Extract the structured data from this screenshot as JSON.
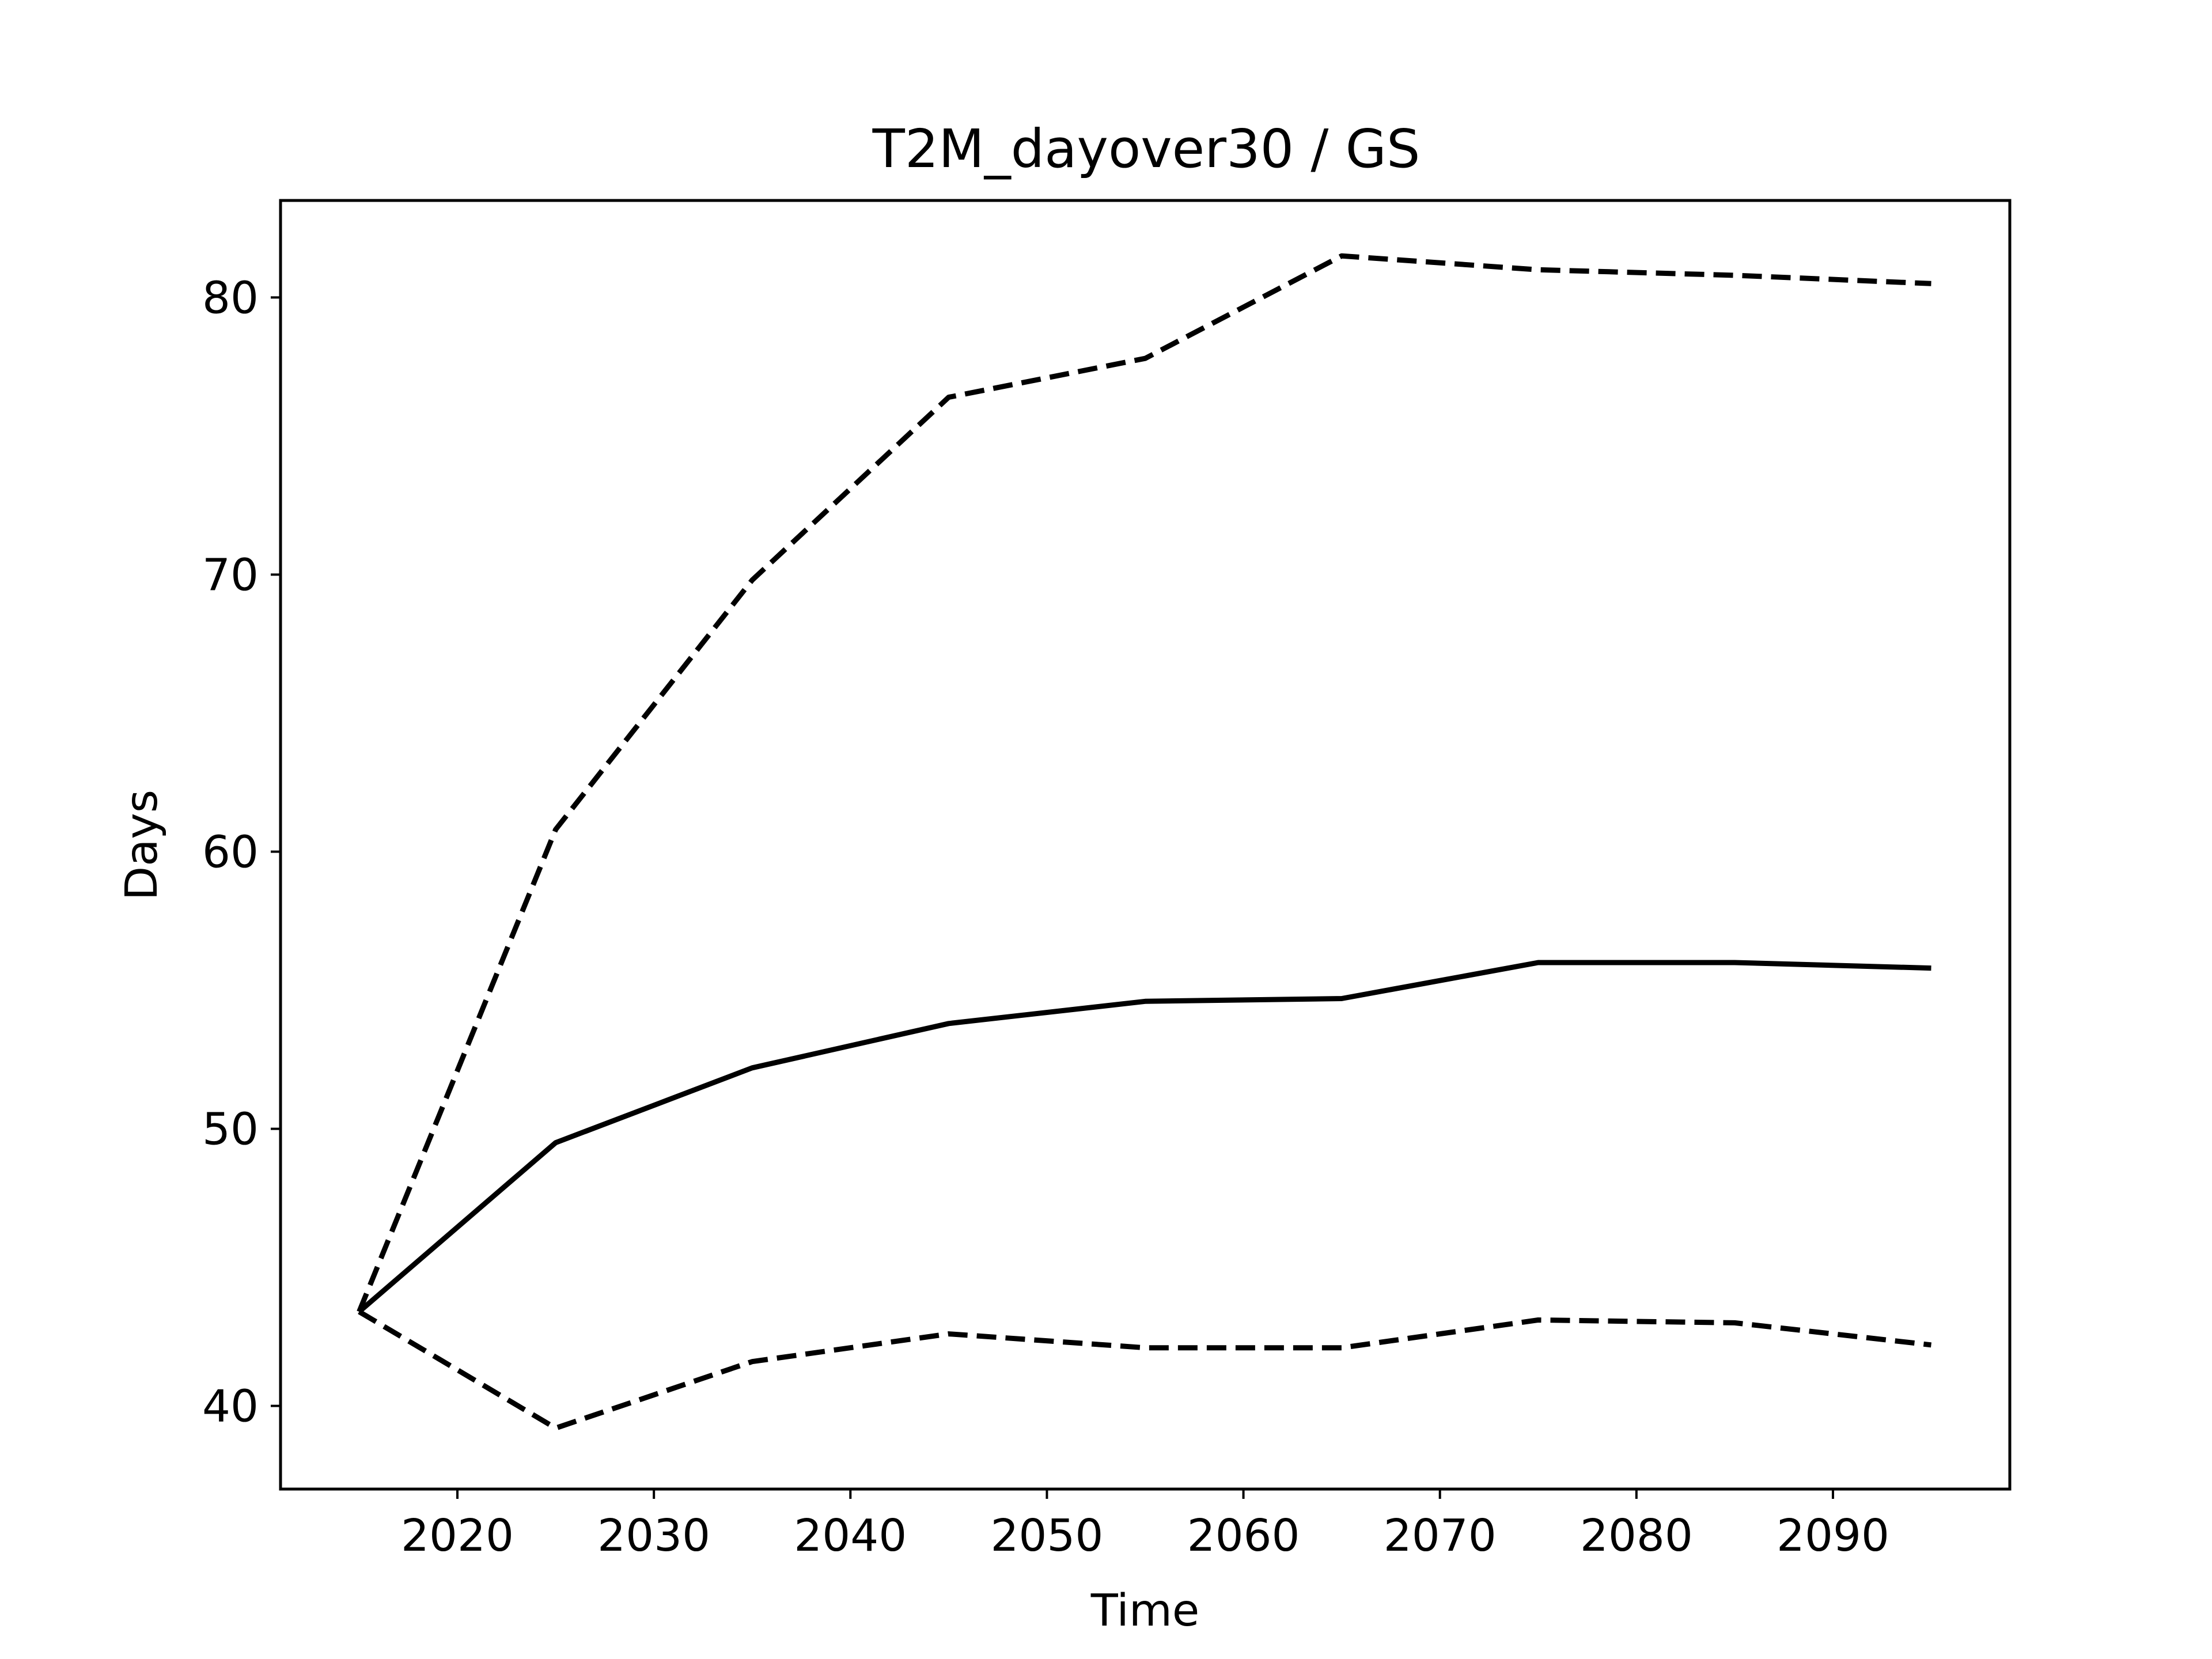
{
  "chart_data": {
    "type": "line",
    "title": "T2M_dayover30 / GS",
    "xlabel": "Time",
    "ylabel": "Days",
    "xlim": [
      2011,
      2099
    ],
    "ylim": [
      37.0,
      83.5
    ],
    "xticks": [
      2020,
      2030,
      2040,
      2050,
      2060,
      2070,
      2080,
      2090
    ],
    "yticks": [
      40,
      50,
      60,
      70,
      80
    ],
    "x": [
      2015,
      2025,
      2035,
      2045,
      2055,
      2065,
      2075,
      2085,
      2095
    ],
    "series": [
      {
        "style": "dashed",
        "color": "#000000",
        "values": [
          43.4,
          60.8,
          69.8,
          76.4,
          77.8,
          81.5,
          81.0,
          80.8,
          80.5
        ]
      },
      {
        "style": "solid",
        "color": "#000000",
        "values": [
          43.4,
          49.5,
          52.2,
          53.8,
          54.6,
          54.7,
          56.0,
          56.0,
          55.8
        ]
      },
      {
        "style": "dashed",
        "color": "#000000",
        "values": [
          43.4,
          39.2,
          41.6,
          42.6,
          42.1,
          42.1,
          43.1,
          43.0,
          42.2
        ]
      }
    ],
    "grid": false,
    "legend": false
  }
}
